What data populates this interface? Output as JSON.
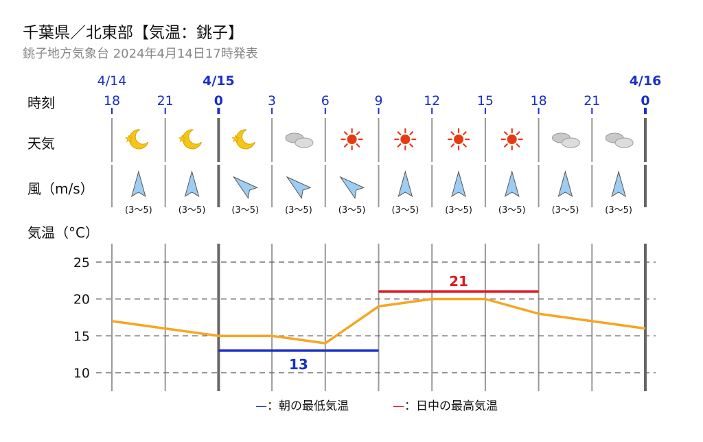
{
  "header": {
    "title": "千葉県／北東部【気温：銚子】",
    "subtitle": "銚子地方気象台 2024年4月14日17時発表"
  },
  "labels": {
    "time": "時刻",
    "weather": "天気",
    "wind": "風（m/s）",
    "temp": "気温（°C）"
  },
  "dates": [
    {
      "label": "4/14",
      "hour_index": 0,
      "bold": false
    },
    {
      "label": "4/15",
      "hour_index": 2,
      "bold": true
    },
    {
      "label": "4/16",
      "hour_index": 10,
      "bold": true
    }
  ],
  "hours": [
    "18",
    "21",
    "0",
    "3",
    "6",
    "9",
    "12",
    "15",
    "18",
    "21",
    "0"
  ],
  "weather_icons": [
    "moon-icon",
    "moon-icon",
    "moon-icon",
    "cloud-icon",
    "sun-icon",
    "sun-icon",
    "sun-icon",
    "sun-icon",
    "cloud-icon",
    "cloud-icon"
  ],
  "wind": [
    {
      "dir": "south",
      "speed": "(3〜5)"
    },
    {
      "dir": "south",
      "speed": "(3〜5)"
    },
    {
      "dir": "southeast",
      "speed": "(3〜5)"
    },
    {
      "dir": "southeast",
      "speed": "(3〜5)"
    },
    {
      "dir": "southeast",
      "speed": "(3〜5)"
    },
    {
      "dir": "south",
      "speed": "(3〜5)"
    },
    {
      "dir": "south",
      "speed": "(3〜5)"
    },
    {
      "dir": "south",
      "speed": "(3〜5)"
    },
    {
      "dir": "south",
      "speed": "(3〜5)"
    },
    {
      "dir": "south",
      "speed": "(3〜5)"
    }
  ],
  "chart_data": {
    "type": "line",
    "x": [
      "18",
      "21",
      "0",
      "3",
      "6",
      "9",
      "12",
      "15",
      "18",
      "21",
      "0"
    ],
    "series": [
      {
        "values": [
          17,
          16,
          15,
          15,
          14,
          19,
          20,
          20,
          18,
          17,
          16
        ]
      }
    ],
    "yticks": [
      10,
      15,
      20,
      25
    ],
    "ylim": [
      7.5,
      27.5
    ],
    "min_temp": {
      "value": 13,
      "label": "13",
      "from_index": 2,
      "to_index": 5
    },
    "max_temp": {
      "value": 21,
      "label": "21",
      "from_index": 5,
      "to_index": 8
    },
    "grid": true,
    "legend_position": "bottom",
    "colors": {
      "line": "#f5a623",
      "min": "#1a2ecc",
      "max": "#e0151f",
      "hour": "#1a2ecc"
    }
  },
  "legend": {
    "min_label": "—：朝の最低気温",
    "max_label": "—：日中の最高気温"
  }
}
